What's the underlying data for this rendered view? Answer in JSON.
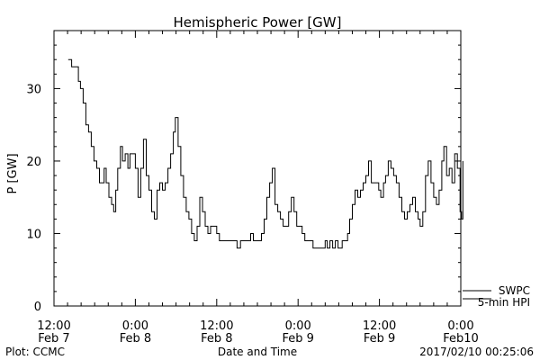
{
  "chart_data": {
    "type": "line",
    "title": "Hemispheric Power [GW]",
    "xlabel": "Date and Time",
    "ylabel": "P [GW]",
    "ylim": [
      0,
      38
    ],
    "xlim_hours": [
      -12,
      48
    ],
    "y_ticks": [
      0,
      10,
      20,
      30
    ],
    "x_ticks": [
      {
        "t": 0,
        "time": "12:00",
        "date": "Feb 7"
      },
      {
        "t": 12,
        "time": "0:00",
        "date": "Feb 8"
      },
      {
        "t": 24,
        "time": "12:00",
        "date": "Feb 8"
      },
      {
        "t": 36,
        "time": "0:00",
        "date": "Feb 9"
      },
      {
        "t": 48,
        "time": "12:00",
        "date": "Feb 9"
      },
      {
        "t": 60,
        "time": "0:00",
        "date": "Feb10"
      }
    ],
    "grid": false,
    "legend": "bottom-right",
    "series": [
      {
        "name": "5-min HPI",
        "color": "#000000",
        "points": [
          [
            -9.9,
            34
          ],
          [
            -9.4,
            33
          ],
          [
            -8.8,
            33
          ],
          [
            -8.4,
            31
          ],
          [
            -8.1,
            30
          ],
          [
            -7.7,
            28
          ],
          [
            -7.3,
            25
          ],
          [
            -6.9,
            24
          ],
          [
            -6.5,
            22
          ],
          [
            -6.1,
            20
          ],
          [
            -5.7,
            19
          ],
          [
            -5.3,
            17
          ],
          [
            -4.9,
            17
          ],
          [
            -4.6,
            19
          ],
          [
            -4.3,
            17
          ],
          [
            -3.9,
            15
          ],
          [
            -3.5,
            14
          ],
          [
            -3.2,
            13
          ],
          [
            -2.9,
            16
          ],
          [
            -2.6,
            19
          ],
          [
            -2.2,
            22
          ],
          [
            -1.9,
            20
          ],
          [
            -1.5,
            21
          ],
          [
            -1.1,
            19
          ],
          [
            -0.8,
            21
          ],
          [
            -0.4,
            21
          ],
          [
            0.0,
            19
          ],
          [
            0.4,
            15
          ],
          [
            0.8,
            19
          ],
          [
            1.2,
            23
          ],
          [
            1.6,
            18
          ],
          [
            2.0,
            16
          ],
          [
            2.4,
            13
          ],
          [
            2.8,
            12
          ],
          [
            3.2,
            16
          ],
          [
            3.6,
            17
          ],
          [
            4.0,
            16
          ],
          [
            4.4,
            17
          ],
          [
            4.8,
            19
          ],
          [
            5.2,
            21
          ],
          [
            5.6,
            24
          ],
          [
            5.9,
            26
          ],
          [
            6.3,
            22
          ],
          [
            6.7,
            18
          ],
          [
            7.1,
            15
          ],
          [
            7.5,
            13
          ],
          [
            7.9,
            12
          ],
          [
            8.3,
            10
          ],
          [
            8.7,
            9
          ],
          [
            9.1,
            11
          ],
          [
            9.5,
            15
          ],
          [
            9.9,
            13
          ],
          [
            10.3,
            11
          ],
          [
            10.7,
            10
          ],
          [
            11.1,
            11
          ],
          [
            11.6,
            11
          ],
          [
            12.0,
            10
          ],
          [
            12.4,
            9
          ],
          [
            13.5,
            9
          ],
          [
            14.6,
            9
          ],
          [
            15.0,
            8
          ],
          [
            15.5,
            9
          ],
          [
            16.5,
            9
          ],
          [
            17.0,
            10
          ],
          [
            17.4,
            9
          ],
          [
            18.2,
            9
          ],
          [
            18.6,
            10
          ],
          [
            19.0,
            12
          ],
          [
            19.4,
            15
          ],
          [
            19.8,
            17
          ],
          [
            20.2,
            19
          ],
          [
            20.6,
            14
          ],
          [
            21.0,
            13
          ],
          [
            21.4,
            12
          ],
          [
            21.8,
            11
          ],
          [
            22.2,
            11
          ],
          [
            22.6,
            13
          ],
          [
            23.0,
            15
          ],
          [
            23.4,
            13
          ],
          [
            23.8,
            11
          ],
          [
            24.2,
            11
          ],
          [
            24.6,
            10
          ],
          [
            25.0,
            9
          ],
          [
            25.6,
            9
          ],
          [
            26.2,
            8
          ],
          [
            27.5,
            8
          ],
          [
            28.0,
            9
          ],
          [
            28.3,
            8
          ],
          [
            28.7,
            9
          ],
          [
            29.1,
            8
          ],
          [
            29.5,
            9
          ],
          [
            29.9,
            8
          ],
          [
            30.5,
            9
          ],
          [
            31.0,
            9
          ],
          [
            31.3,
            10
          ],
          [
            31.6,
            12
          ],
          [
            32.0,
            14
          ],
          [
            32.4,
            16
          ],
          [
            32.8,
            15
          ],
          [
            33.2,
            16
          ],
          [
            33.6,
            17
          ],
          [
            34.0,
            18
          ],
          [
            34.4,
            20
          ],
          [
            34.8,
            17
          ],
          [
            35.4,
            17
          ],
          [
            35.9,
            16
          ],
          [
            36.2,
            15
          ],
          [
            36.6,
            17
          ],
          [
            36.9,
            18
          ],
          [
            37.3,
            20
          ],
          [
            37.7,
            19
          ],
          [
            38.1,
            18
          ],
          [
            38.5,
            17
          ],
          [
            38.9,
            15
          ],
          [
            39.3,
            13
          ],
          [
            39.7,
            12
          ],
          [
            40.1,
            13
          ],
          [
            40.5,
            14
          ],
          [
            40.9,
            15
          ],
          [
            41.3,
            13
          ],
          [
            41.7,
            12
          ],
          [
            42.0,
            11
          ],
          [
            42.4,
            13
          ],
          [
            42.8,
            18
          ],
          [
            43.2,
            20
          ],
          [
            43.6,
            17
          ],
          [
            44.0,
            15
          ],
          [
            44.4,
            14
          ],
          [
            44.8,
            16
          ],
          [
            45.2,
            20
          ],
          [
            45.5,
            22
          ],
          [
            45.9,
            18
          ],
          [
            46.3,
            19
          ],
          [
            46.7,
            17
          ],
          [
            47.1,
            21
          ],
          [
            47.5,
            19
          ],
          [
            47.9,
            13
          ],
          [
            48.1,
            12
          ],
          [
            48.3,
            20
          ]
        ]
      },
      {
        "name": "SWPC",
        "color": "#000000",
        "points": []
      }
    ]
  },
  "footer": {
    "left": "Plot: CCMC",
    "right": "2017/02/10 00:25:06"
  }
}
